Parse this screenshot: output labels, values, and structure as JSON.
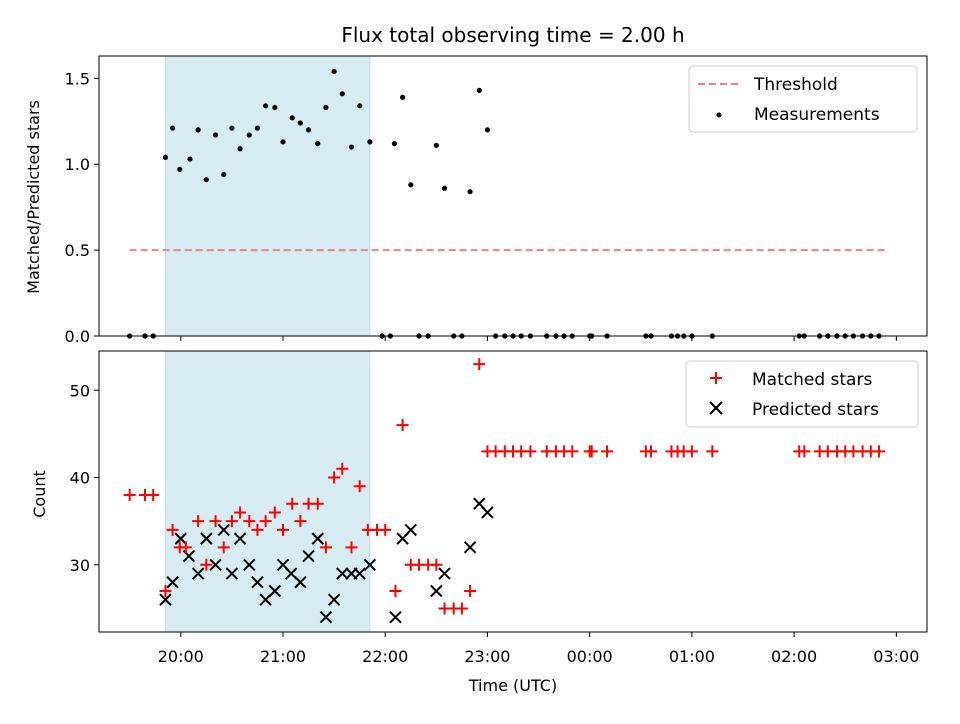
{
  "chart_data": [
    {
      "type": "scatter",
      "panel": "top",
      "title": "Flux total observing time = 2.00 h",
      "xlabel": "",
      "ylabel": "Matched/Predicted stars",
      "xlim_hours": [
        19.2,
        27.3
      ],
      "ylim": [
        0,
        1.63
      ],
      "yticks": [
        0.0,
        0.5,
        1.0,
        1.5
      ],
      "ytick_labels": [
        "0.0",
        "0.5",
        "1.0",
        "1.5"
      ],
      "shaded_interval_hours": [
        19.85,
        21.85
      ],
      "shaded_color": "#add8e6",
      "threshold": {
        "name": "Threshold",
        "y": 0.5,
        "x_range_hours": [
          19.5,
          26.9
        ],
        "color": "#f08080",
        "style": "dashed"
      },
      "series": [
        {
          "name": "Measurements",
          "color": "#000000",
          "marker": "dot",
          "x_hours": [
            19.5,
            19.65,
            19.73,
            19.85,
            19.92,
            19.99,
            20.09,
            20.17,
            20.25,
            20.34,
            20.42,
            20.5,
            20.58,
            20.67,
            20.75,
            20.83,
            20.92,
            21.0,
            21.09,
            21.17,
            21.25,
            21.34,
            21.42,
            21.5,
            21.58,
            21.67,
            21.75,
            21.85,
            21.97,
            22.05,
            22.09,
            22.17,
            22.25,
            22.33,
            22.42,
            22.5,
            22.58,
            22.67,
            22.75,
            22.83,
            22.92,
            23.0,
            23.08,
            23.17,
            23.25,
            23.33,
            23.42,
            23.58,
            23.67,
            23.75,
            23.83,
            24.0,
            24.02,
            24.17,
            24.55,
            24.6,
            24.8,
            24.86,
            24.92,
            25.0,
            25.2,
            26.05,
            26.1,
            26.25,
            26.33,
            26.42,
            26.5,
            26.58,
            26.67,
            26.75,
            26.83
          ],
          "y": [
            0,
            0,
            0,
            1.04,
            1.21,
            0.97,
            1.03,
            1.2,
            0.91,
            1.17,
            0.94,
            1.21,
            1.09,
            1.17,
            1.21,
            1.34,
            1.33,
            1.13,
            1.27,
            1.24,
            1.2,
            1.12,
            1.33,
            1.54,
            1.41,
            1.1,
            1.34,
            1.13,
            0,
            0,
            1.12,
            1.39,
            0.88,
            0,
            0,
            1.11,
            0.86,
            0,
            0,
            0.84,
            1.43,
            1.2,
            0,
            0,
            0,
            0,
            0,
            0,
            0,
            0,
            0,
            0,
            0,
            0,
            0,
            0,
            0,
            0,
            0,
            0,
            0,
            0,
            0,
            0,
            0,
            0,
            0,
            0,
            0,
            0,
            0
          ]
        }
      ],
      "legend": {
        "placement": "upper-right",
        "entries": [
          "Threshold",
          "Measurements"
        ]
      }
    },
    {
      "type": "scatter",
      "panel": "bottom",
      "title": "",
      "xlabel": "Time (UTC)",
      "ylabel": "Count",
      "xlim_hours": [
        19.2,
        27.3
      ],
      "ylim": [
        22.3,
        54.5
      ],
      "yticks": [
        30,
        40,
        50
      ],
      "ytick_labels": [
        "30",
        "40",
        "50"
      ],
      "xticks_hours": [
        20,
        21,
        22,
        23,
        24,
        25,
        26,
        27
      ],
      "xtick_labels": [
        "20:00",
        "21:00",
        "22:00",
        "23:00",
        "00:00",
        "01:00",
        "02:00",
        "03:00"
      ],
      "shaded_interval_hours": [
        19.85,
        21.85
      ],
      "shaded_color": "#add8e6",
      "series": [
        {
          "name": "Matched stars",
          "color": "#ff0000",
          "marker": "plus",
          "x_hours": [
            19.5,
            19.65,
            19.73,
            19.85,
            19.92,
            19.99,
            20.05,
            20.17,
            20.25,
            20.34,
            20.42,
            20.5,
            20.58,
            20.67,
            20.75,
            20.83,
            20.92,
            21.0,
            21.09,
            21.17,
            21.25,
            21.34,
            21.42,
            21.5,
            21.58,
            21.67,
            21.75,
            21.83,
            21.92,
            22.0,
            22.1,
            22.17,
            22.25,
            22.33,
            22.42,
            22.5,
            22.58,
            22.67,
            22.75,
            22.83,
            22.92,
            23.0,
            23.08,
            23.17,
            23.25,
            23.33,
            23.42,
            23.58,
            23.67,
            23.75,
            23.83,
            24.0,
            24.02,
            24.17,
            24.55,
            24.6,
            24.8,
            24.86,
            24.92,
            25.0,
            25.2,
            26.05,
            26.1,
            26.25,
            26.33,
            26.42,
            26.5,
            26.58,
            26.67,
            26.75,
            26.83
          ],
          "y": [
            38,
            38,
            38,
            27,
            34,
            32,
            32,
            35,
            30,
            35,
            32,
            35,
            36,
            35,
            34,
            35,
            36,
            34,
            37,
            35,
            37,
            37,
            32,
            40,
            41,
            32,
            39,
            34,
            34,
            34,
            27,
            46,
            30,
            30,
            30,
            30,
            25,
            25,
            25,
            27,
            53,
            43,
            43,
            43,
            43,
            43,
            43,
            43,
            43,
            43,
            43,
            43,
            43,
            43,
            43,
            43,
            43,
            43,
            43,
            43,
            43,
            43,
            43,
            43,
            43,
            43,
            43,
            43,
            43,
            43,
            43
          ]
        },
        {
          "name": "Predicted stars",
          "color": "#000000",
          "marker": "x",
          "x_hours": [
            19.85,
            19.92,
            20.0,
            20.08,
            20.17,
            20.25,
            20.34,
            20.42,
            20.5,
            20.58,
            20.67,
            20.75,
            20.83,
            20.92,
            21.0,
            21.08,
            21.17,
            21.25,
            21.34,
            21.42,
            21.5,
            21.58,
            21.67,
            21.75,
            21.85,
            22.1,
            22.17,
            22.25,
            22.5,
            22.58,
            22.83,
            22.92,
            23.0
          ],
          "y": [
            26,
            28,
            33,
            31,
            29,
            33,
            30,
            34,
            29,
            33,
            30,
            28,
            26,
            27,
            30,
            29,
            28,
            31,
            33,
            24,
            26,
            29,
            29,
            29,
            30,
            24,
            33,
            34,
            27,
            29,
            32,
            37,
            36
          ]
        }
      ],
      "legend": {
        "placement": "upper-right",
        "entries": [
          "Matched stars",
          "Predicted stars"
        ]
      }
    }
  ]
}
